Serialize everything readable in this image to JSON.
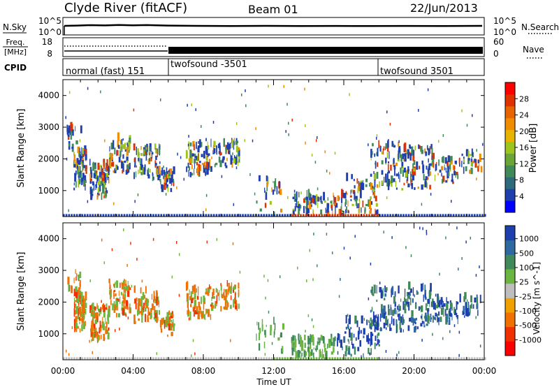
{
  "header": {
    "station": "Clyde River (fitACF)",
    "beam": "Beam 01",
    "date": "22/Jun/2013"
  },
  "strips": {
    "nsky": {
      "label": "N.Sky",
      "left_ticks": [
        "10^5",
        "10^0"
      ],
      "right_ticks": [
        "10^5",
        "10^0"
      ],
      "right_label": "N.Search"
    },
    "freq": {
      "label_line1": "Freq.",
      "label_line2": "[MHz]",
      "left_ticks": [
        "18",
        "8"
      ],
      "right_ticks": [
        "60",
        "0"
      ],
      "right_label": "Nave"
    },
    "cpid": {
      "label": "CPID",
      "modes": [
        {
          "name": "normal (fast) 151",
          "start_hour": 0
        },
        {
          "name": "twofsound -3501",
          "start_hour": 6
        },
        {
          "name": "twofsound 3501",
          "start_hour": 18
        }
      ]
    }
  },
  "xaxis": {
    "label": "Time UT",
    "ticks": [
      "00:00",
      "04:00",
      "08:00",
      "12:00",
      "16:00",
      "20:00",
      "00:00"
    ],
    "range_hours": [
      0,
      24
    ]
  },
  "chart_data": [
    {
      "type": "heatmap",
      "name": "power",
      "ylabel": "Slant Range [km]",
      "yticks": [
        1000,
        2000,
        3000,
        4000
      ],
      "ylim": [
        180,
        4500
      ],
      "colorbar": {
        "label": "Power [dB]",
        "ticks": [
          "4",
          "8",
          "12",
          "16",
          "20",
          "24",
          "28"
        ],
        "range": [
          0,
          30
        ],
        "colors": [
          "#0000ff",
          "#1f3fae",
          "#2d6a7a",
          "#3f8a58",
          "#6aa536",
          "#9ec41e",
          "#e8b400",
          "#f08c00",
          "#e86400",
          "#e03200",
          "#ff0000"
        ]
      }
    },
    {
      "type": "heatmap",
      "name": "velocity",
      "ylabel": "Slant Range [km]",
      "yticks": [
        1000,
        2000,
        3000,
        4000
      ],
      "ylim": [
        180,
        4500
      ],
      "colorbar": {
        "label": "Velocity [m s^-1]",
        "ticks": [
          "1000",
          "500",
          "100",
          "25",
          "-25",
          "-100",
          "-500",
          "-1000"
        ],
        "colors": [
          "#1d3fae",
          "#2e6aa0",
          "#3f8a58",
          "#6ab640",
          "#bebebe",
          "#f0a000",
          "#f07000",
          "#f03000",
          "#ff0000"
        ]
      }
    }
  ]
}
